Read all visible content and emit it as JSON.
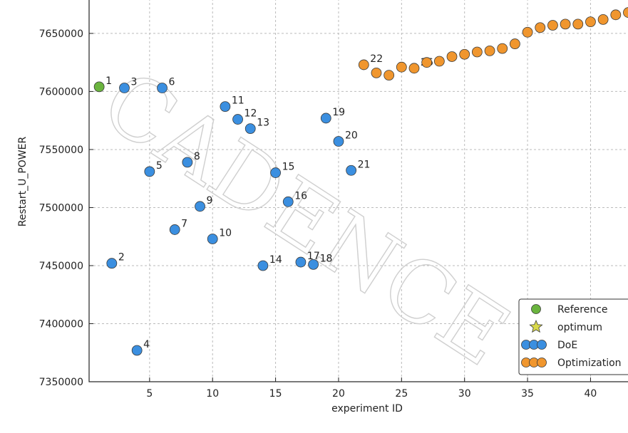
{
  "chart_data": {
    "type": "scatter",
    "xlabel": "experiment ID",
    "ylabel": "Restart_U_POWER",
    "xlim": [
      0.2,
      43.2
    ],
    "ylim": [
      7350000,
      7680000
    ],
    "xticks": [
      5,
      10,
      15,
      20,
      25,
      30,
      35,
      40
    ],
    "yticks": [
      7350000,
      7400000,
      7450000,
      7500000,
      7550000,
      7600000,
      7650000
    ],
    "grid": true,
    "legend_position": "bottom-right",
    "watermark": "CADENCE",
    "series": [
      {
        "name": "Reference",
        "color": "#6ab43e",
        "marker": "circle",
        "points": [
          {
            "x": 1,
            "y": 7604000,
            "label": "1"
          }
        ]
      },
      {
        "name": "optimum",
        "color": "#d9d94a",
        "marker": "star",
        "points": []
      },
      {
        "name": "DoE",
        "color": "#3b8fe0",
        "marker": "circle",
        "points": [
          {
            "x": 2,
            "y": 7452000,
            "label": "2"
          },
          {
            "x": 3,
            "y": 7603000,
            "label": "3"
          },
          {
            "x": 4,
            "y": 7377000,
            "label": "4"
          },
          {
            "x": 5,
            "y": 7531000,
            "label": "5"
          },
          {
            "x": 6,
            "y": 7603000,
            "label": "6"
          },
          {
            "x": 7,
            "y": 7481000,
            "label": "7"
          },
          {
            "x": 8,
            "y": 7539000,
            "label": "8"
          },
          {
            "x": 9,
            "y": 7501000,
            "label": "9"
          },
          {
            "x": 10,
            "y": 7473000,
            "label": "10"
          },
          {
            "x": 11,
            "y": 7587000,
            "label": "11"
          },
          {
            "x": 12,
            "y": 7576000,
            "label": "12"
          },
          {
            "x": 13,
            "y": 7568000,
            "label": "13"
          },
          {
            "x": 14,
            "y": 7450000,
            "label": "14"
          },
          {
            "x": 15,
            "y": 7530000,
            "label": "15"
          },
          {
            "x": 16,
            "y": 7505000,
            "label": "16"
          },
          {
            "x": 17,
            "y": 7453000,
            "label": "17"
          },
          {
            "x": 18,
            "y": 7451000,
            "label": "18"
          },
          {
            "x": 19,
            "y": 7577000,
            "label": "19"
          },
          {
            "x": 20,
            "y": 7557000,
            "label": "20"
          },
          {
            "x": 21,
            "y": 7532000,
            "label": "21"
          }
        ]
      },
      {
        "name": "Optimization",
        "color": "#f0962e",
        "marker": "circle",
        "points": [
          {
            "x": 22,
            "y": 7623000,
            "label": "22"
          },
          {
            "x": 23,
            "y": 7616000,
            "label": ""
          },
          {
            "x": 24,
            "y": 7614000,
            "label": ""
          },
          {
            "x": 25,
            "y": 7621000,
            "label": ""
          },
          {
            "x": 26,
            "y": 7620000,
            "label": "26"
          },
          {
            "x": 27,
            "y": 7625000,
            "label": ""
          },
          {
            "x": 28,
            "y": 7626000,
            "label": ""
          },
          {
            "x": 29,
            "y": 7630000,
            "label": ""
          },
          {
            "x": 30,
            "y": 7632000,
            "label": ""
          },
          {
            "x": 31,
            "y": 7634000,
            "label": ""
          },
          {
            "x": 32,
            "y": 7635000,
            "label": ""
          },
          {
            "x": 33,
            "y": 7637000,
            "label": ""
          },
          {
            "x": 34,
            "y": 7641000,
            "label": ""
          },
          {
            "x": 35,
            "y": 7651000,
            "label": ""
          },
          {
            "x": 36,
            "y": 7655000,
            "label": ""
          },
          {
            "x": 37,
            "y": 7657000,
            "label": ""
          },
          {
            "x": 38,
            "y": 7658000,
            "label": ""
          },
          {
            "x": 39,
            "y": 7658000,
            "label": ""
          },
          {
            "x": 40,
            "y": 7660000,
            "label": ""
          },
          {
            "x": 41,
            "y": 7662000,
            "label": ""
          },
          {
            "x": 42,
            "y": 7666000,
            "label": ""
          },
          {
            "x": 43,
            "y": 7668000,
            "label": ""
          }
        ]
      }
    ]
  }
}
